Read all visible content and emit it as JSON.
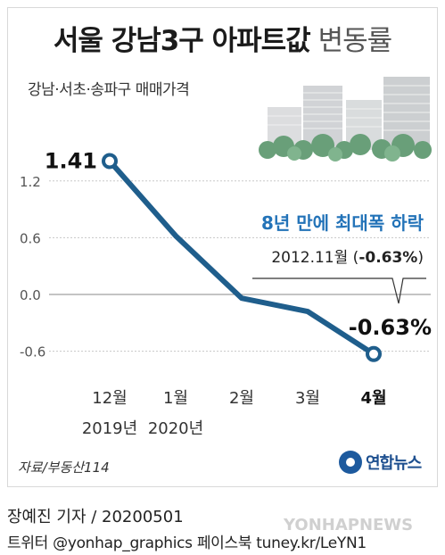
{
  "header": {
    "title_strong": "서울 강남3구 아파트값",
    "title_light": "변동률",
    "subtitle": "강남·서초·송파구 매매가격"
  },
  "chart_data": {
    "type": "line",
    "categories": [
      "12월",
      "1월",
      "2월",
      "3월",
      "4월"
    ],
    "category_years": [
      "2019년",
      "2020년",
      "",
      "",
      ""
    ],
    "yticks": [
      "1.2",
      "0.6",
      "0.0",
      "-0.6"
    ],
    "values": [
      1.41,
      0.62,
      -0.04,
      -0.18,
      -0.63
    ],
    "ylim": [
      -0.8,
      1.5
    ],
    "first_label": "1.41",
    "last_label": "-0.63%",
    "line_color": "#1f5e8c",
    "annotation": {
      "headline": "8년 만에 최대폭 하락",
      "detail_pre": "2012.11월 (",
      "detail_value": "-0.63%",
      "detail_post": ")",
      "headline_color": "#2373b8"
    }
  },
  "footer": {
    "source": "자료/부동산114",
    "logo": "연합뉴스",
    "byline": "장예진 기자 / 20200501",
    "social": "트위터 @yonhap_graphics  페이스북 tuney.kr/LeYN1",
    "watermark": "YONHAPNEWS"
  }
}
